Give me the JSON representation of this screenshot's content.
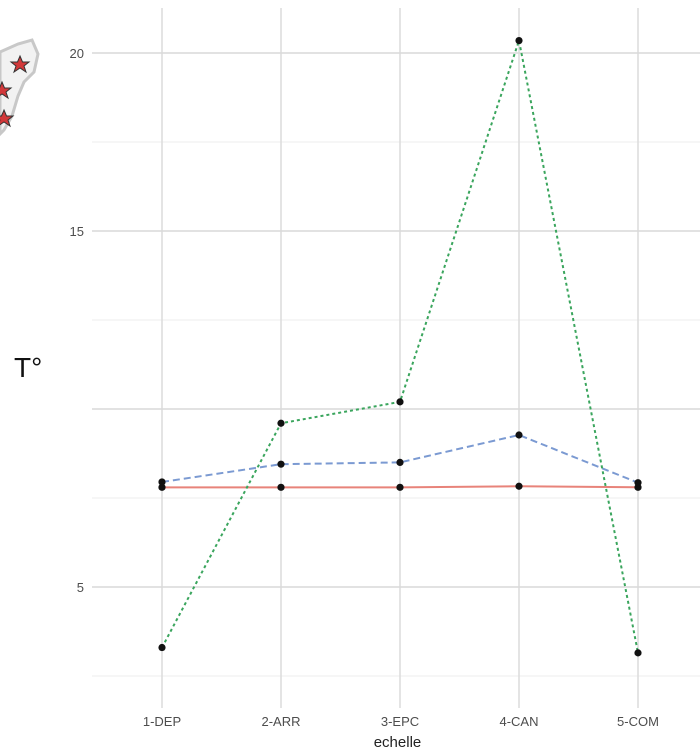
{
  "chart_data": {
    "type": "line",
    "title": "",
    "xlabel": "echelle",
    "ylabel": "T°",
    "categories": [
      "1-DEP",
      "2-ARR",
      "3-EPC",
      "4-CAN",
      "5-COM"
    ],
    "y_ticks": [
      5,
      15,
      20
    ],
    "ylim": [
      2.3,
      21.5
    ],
    "grid": true,
    "series": [
      {
        "color": "#e8837a",
        "dash": "solid",
        "values": [
          7.8,
          7.8,
          7.8,
          7.83,
          7.8
        ]
      },
      {
        "color": "#7b9ad2",
        "dash": "dashed",
        "values": [
          7.95,
          8.45,
          8.5,
          9.27,
          7.93
        ]
      },
      {
        "color": "#3aa55d",
        "dash": "dotted",
        "values": [
          3.3,
          9.6,
          10.2,
          20.35,
          3.15
        ]
      }
    ]
  },
  "decor": {
    "marker_color": "#111111",
    "corner_map": "map-with-star-markers"
  }
}
